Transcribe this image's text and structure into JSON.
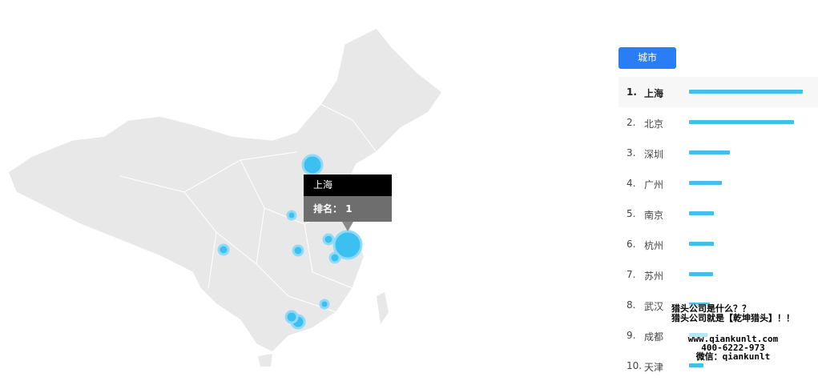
{
  "tooltip": {
    "city": "上海",
    "rank_label": "排名：",
    "rank_value": "1"
  },
  "tab": {
    "label": "城市"
  },
  "colors": {
    "bubble": "#3cc0f0",
    "map": "#e8e8e8",
    "bar": "#44c0e8",
    "tab": "#2a7ef5"
  },
  "ranking": [
    {
      "rank": "1.",
      "city": "上海",
      "bar_fraction": 1.0
    },
    {
      "rank": "2.",
      "city": "北京",
      "bar_fraction": 0.92
    },
    {
      "rank": "3.",
      "city": "深圳",
      "bar_fraction": 0.36
    },
    {
      "rank": "4.",
      "city": "广州",
      "bar_fraction": 0.29
    },
    {
      "rank": "5.",
      "city": "南京",
      "bar_fraction": 0.22
    },
    {
      "rank": "6.",
      "city": "杭州",
      "bar_fraction": 0.22
    },
    {
      "rank": "7.",
      "city": "苏州",
      "bar_fraction": 0.21
    },
    {
      "rank": "8.",
      "city": "武汉",
      "bar_fraction": 0.18
    },
    {
      "rank": "9.",
      "city": "成都",
      "bar_fraction": 0.16
    },
    {
      "rank": "10.",
      "city": "天津",
      "bar_fraction": 0.13
    }
  ],
  "watermark": {
    "line1": "猎头公司是什么？？",
    "line2": "猎头公司就是【乾坤猎头】！！",
    "line3": "www.qiankunlt.com",
    "line4": "400-6222-973",
    "line5": "微信：qiankunlt"
  }
}
